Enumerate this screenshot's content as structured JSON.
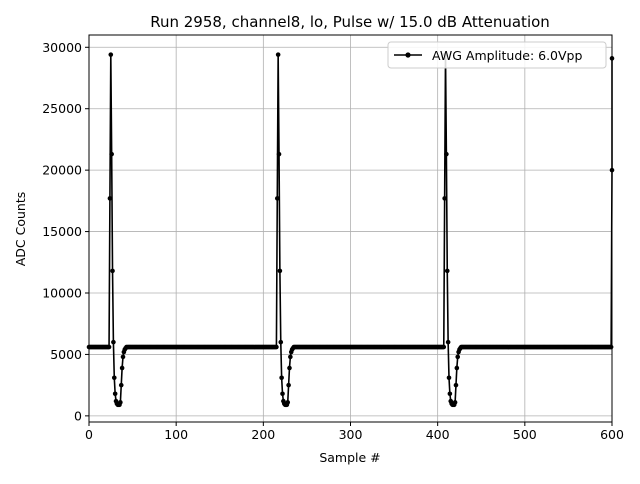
{
  "chart_data": {
    "type": "line",
    "title": "Run 2958, channel8, lo, Pulse w/ 15.0 dB Attenuation",
    "xlabel": "Sample #",
    "ylabel": "ADC Counts",
    "xlim": [
      0,
      600
    ],
    "ylim": [
      -500,
      31000
    ],
    "xticks": [
      0,
      100,
      200,
      300,
      400,
      500,
      600
    ],
    "yticks": [
      0,
      5000,
      10000,
      15000,
      20000,
      25000,
      30000
    ],
    "grid": true,
    "legend_position": "top-right",
    "series": [
      {
        "name": "AWG Amplitude: 6.0Vpp",
        "color": "#000000",
        "marker": "circle",
        "period": 192,
        "baseline": 5600,
        "pulse_start": 24,
        "pulse_shape": [
          17700,
          29400,
          21300,
          11800,
          6000,
          3100,
          1800,
          1200,
          1000,
          900,
          900,
          900,
          1100,
          2500,
          3900,
          4800,
          5200,
          5400,
          5500
        ],
        "pulse_starts": [
          24,
          216,
          408
        ],
        "x_end": 600,
        "final_values": [
          20000,
          29100
        ]
      }
    ]
  }
}
